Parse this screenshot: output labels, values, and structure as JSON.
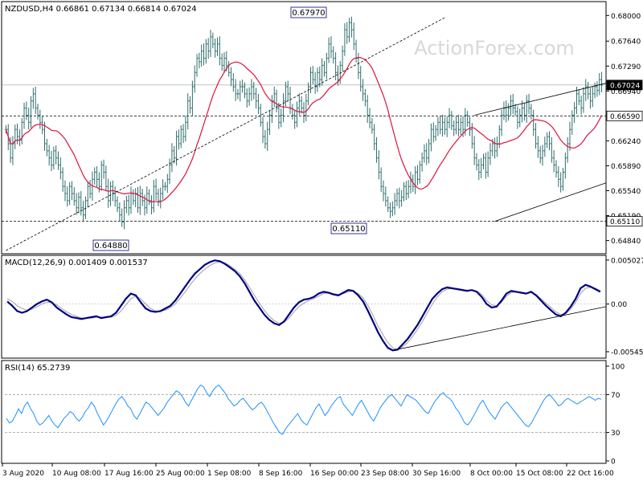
{
  "colors": {
    "background": "#ffffff",
    "border": "#000000",
    "candle": "#2e6c6c",
    "ma": "#dc143c",
    "macd": "#000080",
    "signal": "#a0a0a0",
    "rsi": "#1e90ff",
    "dashed": "#000000",
    "watermark": "#d8d8d8"
  },
  "watermark": "ActionForex.com",
  "chart_data": [
    {
      "type": "candlestick",
      "name": "price-panel",
      "title": "NZDUSD,H4  0.66861 0.67134 0.66814 0.67024",
      "ylim": [
        0.647,
        0.6815
      ],
      "yticks": [
        0.68,
        0.6764,
        0.6729,
        0.6694,
        0.6624,
        0.6589,
        0.6554,
        0.6519,
        0.6484
      ],
      "ytick_labels": [
        "0.68000",
        "0.67640",
        "0.67290",
        "0.66940",
        "0.66240",
        "0.65890",
        "0.65540",
        "0.65190",
        "0.64840"
      ],
      "price_tags": [
        {
          "label": "0.67024",
          "value": 0.67024,
          "highlight": true
        },
        {
          "label": "0.66590",
          "value": 0.6659,
          "highlight": false
        },
        {
          "label": "0.65110",
          "value": 0.6511,
          "highlight": false
        }
      ],
      "horizontal_levels": [
        0.67024,
        0.6659,
        0.6511
      ],
      "annotations": [
        {
          "label": "0.67970",
          "value": 0.6797
        },
        {
          "label": "0.65110",
          "value": 0.6511
        },
        {
          "label": "0.64880",
          "value": 0.6488
        }
      ],
      "trendlines": [
        {
          "name": "rise-line",
          "from": [
            0,
            0.647
          ],
          "to": [
            193,
            0.6797
          ]
        },
        {
          "name": "channel-upper",
          "from": [
            206,
            0.666
          ],
          "to": [
            350,
            0.6705
          ]
        },
        {
          "name": "channel-lower",
          "from": [
            215,
            0.6511
          ],
          "to": [
            350,
            0.6565
          ]
        }
      ],
      "close": [
        0.664,
        0.662,
        0.66,
        0.662,
        0.664,
        0.663,
        0.6625,
        0.665,
        0.667,
        0.666,
        0.665,
        0.668,
        0.669,
        0.667,
        0.666,
        0.665,
        0.664,
        0.662,
        0.661,
        0.66,
        0.659,
        0.661,
        0.66,
        0.659,
        0.658,
        0.656,
        0.655,
        0.654,
        0.656,
        0.655,
        0.654,
        0.653,
        0.6545,
        0.653,
        0.652,
        0.654,
        0.656,
        0.655,
        0.657,
        0.658,
        0.657,
        0.656,
        0.659,
        0.658,
        0.656,
        0.654,
        0.656,
        0.655,
        0.654,
        0.653,
        0.652,
        0.651,
        0.653,
        0.654,
        0.653,
        0.655,
        0.654,
        0.655,
        0.653,
        0.655,
        0.654,
        0.653,
        0.655,
        0.654,
        0.653,
        0.656,
        0.655,
        0.654,
        0.655,
        0.656,
        0.656,
        0.657,
        0.659,
        0.661,
        0.66,
        0.663,
        0.662,
        0.664,
        0.663,
        0.665,
        0.668,
        0.667,
        0.67,
        0.672,
        0.674,
        0.6735,
        0.675,
        0.674,
        0.676,
        0.675,
        0.677,
        0.676,
        0.675,
        0.676,
        0.674,
        0.673,
        0.674,
        0.673,
        0.672,
        0.671,
        0.67,
        0.669,
        0.669,
        0.67,
        0.67,
        0.669,
        0.668,
        0.669,
        0.67,
        0.669,
        0.668,
        0.667,
        0.665,
        0.663,
        0.662,
        0.664,
        0.666,
        0.668,
        0.669,
        0.667,
        0.665,
        0.666,
        0.668,
        0.67,
        0.669,
        0.667,
        0.666,
        0.665,
        0.667,
        0.668,
        0.667,
        0.666,
        0.668,
        0.67,
        0.672,
        0.671,
        0.67,
        0.672,
        0.671,
        0.673,
        0.672,
        0.674,
        0.676,
        0.675,
        0.674,
        0.672,
        0.671,
        0.673,
        0.675,
        0.678,
        0.677,
        0.679,
        0.678,
        0.676,
        0.674,
        0.672,
        0.67,
        0.669,
        0.668,
        0.666,
        0.665,
        0.664,
        0.662,
        0.66,
        0.658,
        0.656,
        0.655,
        0.654,
        0.653,
        0.6525,
        0.653,
        0.654,
        0.655,
        0.654,
        0.6545,
        0.656,
        0.655,
        0.656,
        0.657,
        0.656,
        0.658,
        0.657,
        0.659,
        0.66,
        0.661,
        0.66,
        0.662,
        0.664,
        0.663,
        0.664,
        0.665,
        0.664,
        0.665,
        0.664,
        0.665,
        0.666,
        0.6645,
        0.664,
        0.665,
        0.664,
        0.665,
        0.664,
        0.666,
        0.665,
        0.664,
        0.662,
        0.66,
        0.659,
        0.658,
        0.659,
        0.66,
        0.658,
        0.66,
        0.661,
        0.662,
        0.661,
        0.662,
        0.664,
        0.666,
        0.667,
        0.666,
        0.667,
        0.668,
        0.667,
        0.6665,
        0.665,
        0.666,
        0.667,
        0.666,
        0.668,
        0.667,
        0.666,
        0.664,
        0.662,
        0.661,
        0.66,
        0.661,
        0.662,
        0.663,
        0.662,
        0.66,
        0.659,
        0.658,
        0.657,
        0.656,
        0.658,
        0.66,
        0.662,
        0.664,
        0.666,
        0.667,
        0.669,
        0.668,
        0.667,
        0.669,
        0.67,
        0.669,
        0.668,
        0.669,
        0.67,
        0.6695,
        0.671,
        0.6702
      ],
      "ma_period": 20
    },
    {
      "type": "line",
      "name": "macd-panel",
      "title": "MACD(12,26,9) 0.001409 0.001537",
      "ylim": [
        -0.006,
        0.0052
      ],
      "ytick_labels": [
        "0.005027",
        "0.00",
        "-0.00545"
      ],
      "yticks": [
        0.005027,
        0.0,
        -0.00545
      ],
      "series": [
        {
          "name": "MACD",
          "values": [
            0.0003,
            -0.0002,
            -0.0008,
            -0.001,
            -0.0008,
            -0.0004,
            0.0,
            0.0003,
            0.0005,
            0.0002,
            -0.0004,
            -0.0008,
            -0.0012,
            -0.0015,
            -0.0016,
            -0.0017,
            -0.0016,
            -0.0015,
            -0.0014,
            -0.0016,
            -0.0015,
            -0.0014,
            -0.001,
            -0.0002,
            0.0006,
            0.0012,
            0.001,
            0.0002,
            -0.0005,
            -0.0008,
            -0.0009,
            -0.0008,
            -0.0005,
            -0.0002,
            0.0004,
            0.0012,
            0.002,
            0.0028,
            0.0035,
            0.004,
            0.0045,
            0.0048,
            0.005,
            0.0049,
            0.0046,
            0.0042,
            0.0038,
            0.0032,
            0.0024,
            0.0014,
            0.0004,
            -0.0004,
            -0.0012,
            -0.0018,
            -0.0022,
            -0.0024,
            -0.002,
            -0.0012,
            -0.0004,
            0.0002,
            0.0005,
            0.0006,
            0.0008,
            0.0012,
            0.0014,
            0.0013,
            0.0011,
            0.001,
            0.0013,
            0.0016,
            0.0015,
            0.001,
            0.0003,
            -0.0008,
            -0.002,
            -0.0032,
            -0.0042,
            -0.005,
            -0.0053,
            -0.0052,
            -0.0046,
            -0.004,
            -0.0032,
            -0.0024,
            -0.0014,
            -0.0004,
            0.0006,
            0.0012,
            0.0017,
            0.0019,
            0.0018,
            0.0017,
            0.0016,
            0.0015,
            0.0016,
            0.0014,
            0.0008,
            0.0,
            -0.0004,
            -0.0003,
            0.0004,
            0.0012,
            0.0015,
            0.0014,
            0.0013,
            0.0012,
            0.0014,
            0.001,
            0.0004,
            -0.0002,
            -0.0007,
            -0.0012,
            -0.0014,
            -0.001,
            -0.0003,
            0.0006,
            0.0018,
            0.0022,
            0.002,
            0.0017,
            0.0014
          ]
        },
        {
          "name": "Signal",
          "values": [
            0.0006,
            0.0003,
            -0.0002,
            -0.0005,
            -0.0007,
            -0.0006,
            -0.0003,
            0.0,
            0.0002,
            0.0002,
            -0.0001,
            -0.0005,
            -0.0009,
            -0.0012,
            -0.0014,
            -0.0016,
            -0.0016,
            -0.0016,
            -0.0015,
            -0.0015,
            -0.0015,
            -0.0015,
            -0.0013,
            -0.0008,
            -0.0001,
            0.0006,
            0.0009,
            0.0006,
            0.0,
            -0.0005,
            -0.0008,
            -0.0008,
            -0.0007,
            -0.0004,
            0.0,
            0.0007,
            0.0014,
            0.0022,
            0.0029,
            0.0035,
            0.004,
            0.0044,
            0.0047,
            0.0048,
            0.0047,
            0.0044,
            0.004,
            0.0035,
            0.0028,
            0.0019,
            0.001,
            0.0001,
            -0.0007,
            -0.0014,
            -0.0019,
            -0.0022,
            -0.0021,
            -0.0016,
            -0.0009,
            -0.0003,
            0.0001,
            0.0004,
            0.0006,
            0.0009,
            0.0012,
            0.0013,
            0.0012,
            0.0011,
            0.0012,
            0.0014,
            0.0015,
            0.0012,
            0.0007,
            -0.0002,
            -0.0013,
            -0.0025,
            -0.0035,
            -0.0044,
            -0.005,
            -0.0052,
            -0.0049,
            -0.0044,
            -0.0037,
            -0.0029,
            -0.002,
            -0.001,
            0.0,
            0.0008,
            0.0014,
            0.0017,
            0.0018,
            0.0018,
            0.0017,
            0.0016,
            0.0016,
            0.0015,
            0.0011,
            0.0004,
            -0.0001,
            -0.0002,
            0.0002,
            0.0009,
            0.0013,
            0.0014,
            0.0013,
            0.0012,
            0.0013,
            0.0011,
            0.0006,
            0.0001,
            -0.0004,
            -0.0009,
            -0.0012,
            -0.0011,
            -0.0006,
            0.0002,
            0.0012,
            0.0018,
            0.0019,
            0.0018,
            0.0015
          ]
        }
      ],
      "trendline": {
        "from": [
          78,
          -0.0053
        ],
        "to": [
          120,
          -0.0003
        ]
      }
    },
    {
      "type": "line",
      "name": "rsi-panel",
      "title": "RSI(14) 65.2739",
      "ylim": [
        0,
        100
      ],
      "yticks": [
        100,
        70,
        30,
        0
      ],
      "ytick_labels": [
        "100",
        "70",
        "30",
        "0"
      ],
      "levels": [
        70,
        30
      ],
      "series": [
        {
          "name": "RSI",
          "values": [
            45,
            40,
            42,
            48,
            55,
            50,
            58,
            62,
            55,
            50,
            42,
            38,
            40,
            44,
            48,
            42,
            38,
            35,
            40,
            45,
            48,
            52,
            50,
            45,
            42,
            46,
            52,
            56,
            62,
            58,
            50,
            44,
            38,
            42,
            48,
            54,
            60,
            65,
            68,
            64,
            58,
            55,
            48,
            44,
            50,
            56,
            62,
            60,
            56,
            52,
            48,
            52,
            56,
            62,
            66,
            70,
            74,
            72,
            68,
            62,
            58,
            64,
            70,
            76,
            80,
            78,
            72,
            68,
            74,
            78,
            80,
            76,
            72,
            66,
            62,
            58,
            60,
            64,
            66,
            62,
            58,
            54,
            56,
            60,
            62,
            58,
            52,
            46,
            40,
            35,
            30,
            28,
            34,
            38,
            42,
            46,
            50,
            44,
            40,
            38,
            44,
            50,
            56,
            60,
            54,
            48,
            52,
            58,
            62,
            66,
            68,
            60,
            56,
            52,
            48,
            54,
            60,
            64,
            58,
            52,
            46,
            42,
            48,
            55,
            60,
            64,
            68,
            70,
            66,
            62,
            58,
            64,
            70,
            68,
            66,
            64,
            60,
            56,
            52,
            50,
            56,
            62,
            66,
            70,
            72,
            68,
            66,
            62,
            56,
            52,
            46,
            40,
            38,
            42,
            48,
            54,
            60,
            64,
            58,
            52,
            48,
            44,
            50,
            56,
            60,
            62,
            58,
            54,
            50,
            46,
            42,
            38,
            36,
            40,
            46,
            52,
            58,
            64,
            68,
            70,
            66,
            62,
            58,
            60,
            64,
            66,
            64,
            62,
            60,
            62,
            64,
            66,
            68,
            66,
            64,
            66,
            65
          ]
        }
      ]
    }
  ],
  "x_axis": {
    "labels": [
      "3 Aug 2020",
      "10 Aug 08:00",
      "17 Aug 16:00",
      "25 Aug 00:00",
      "1 Sep 08:00",
      "8 Sep 16:00",
      "16 Sep 00:00",
      "23 Sep 08:00",
      "30 Sep 16:00",
      "8 Oct 00:00",
      "15 Oct 08:00",
      "22 Oct 16:00"
    ]
  }
}
